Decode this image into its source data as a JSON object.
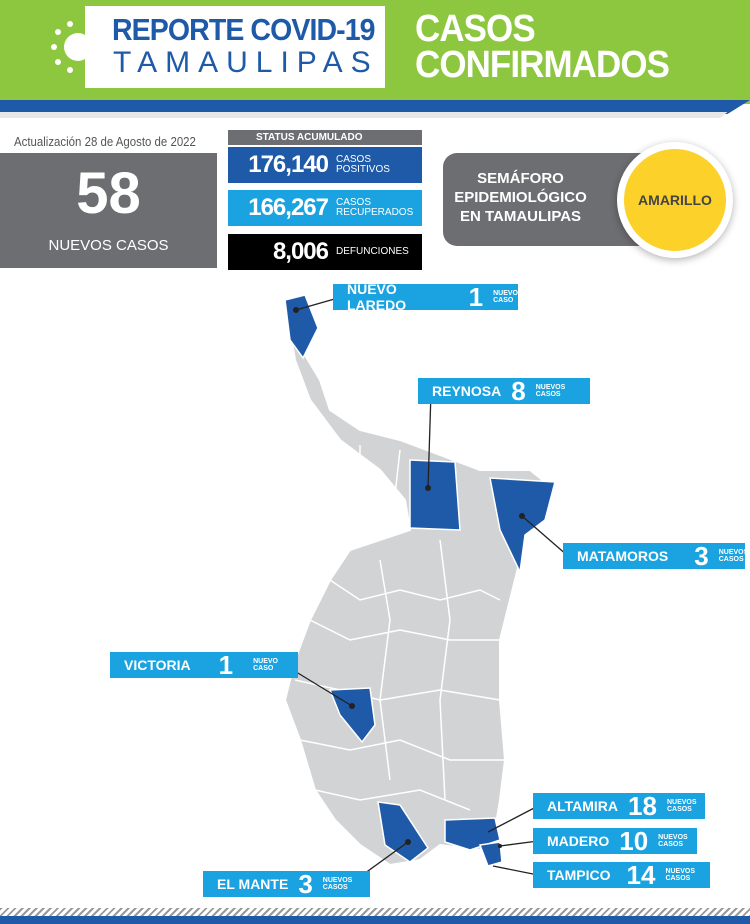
{
  "header": {
    "title_line1": "REPORTE COVID-19",
    "title_line2": "TAMAULIPAS",
    "heading_line1": "CASOS",
    "heading_line2": "CONFIRMADOS",
    "logo_icon": "virus-icon"
  },
  "update": {
    "text": "Actualización  28 de Agosto de 2022"
  },
  "new_cases": {
    "value": "58",
    "label": "NUEVOS CASOS"
  },
  "status": {
    "title": "STATUS ACUMULADO",
    "items": [
      {
        "value": "176,140",
        "label1": "CASOS",
        "label2": "POSITIVOS",
        "color": "#1e5aa8"
      },
      {
        "value": "166,267",
        "label1": "CASOS",
        "label2": "RECUPERADOS",
        "color": "#1aa3e0"
      },
      {
        "value": "8,006",
        "label1": "DEFUNCIONES",
        "label2": "",
        "color": "#000000"
      }
    ]
  },
  "semaforo": {
    "line1": "SEMÁFORO",
    "line2": "EPIDEMIOLÓGICO",
    "line3": "EN TAMAULIPAS",
    "level": "AMARILLO",
    "level_color": "#fcd12a"
  },
  "municipalities": [
    {
      "name": "NUEVO LAREDO",
      "count": "1",
      "unit1": "NUEVO",
      "unit2": "CASO"
    },
    {
      "name": "REYNOSA",
      "count": "8",
      "unit1": "NUEVOS",
      "unit2": "CASOS"
    },
    {
      "name": "MATAMOROS",
      "count": "3",
      "unit1": "NUEVOS",
      "unit2": "CASOS"
    },
    {
      "name": "VICTORIA",
      "count": "1",
      "unit1": "NUEVO",
      "unit2": "CASO"
    },
    {
      "name": "ALTAMIRA",
      "count": "18",
      "unit1": "NUEVOS",
      "unit2": "CASOS"
    },
    {
      "name": "MADERO",
      "count": "10",
      "unit1": "NUEVOS",
      "unit2": "CASOS"
    },
    {
      "name": "TAMPICO",
      "count": "14",
      "unit1": "NUEVOS",
      "unit2": "CASOS"
    },
    {
      "name": "EL MANTE",
      "count": "3",
      "unit1": "NUEVOS",
      "unit2": "CASOS"
    }
  ],
  "colors": {
    "green": "#8dc63f",
    "blue": "#1e5aa8",
    "light_blue": "#1aa3e0",
    "gray": "#6d6e71",
    "map_gray": "#d1d3d4"
  }
}
